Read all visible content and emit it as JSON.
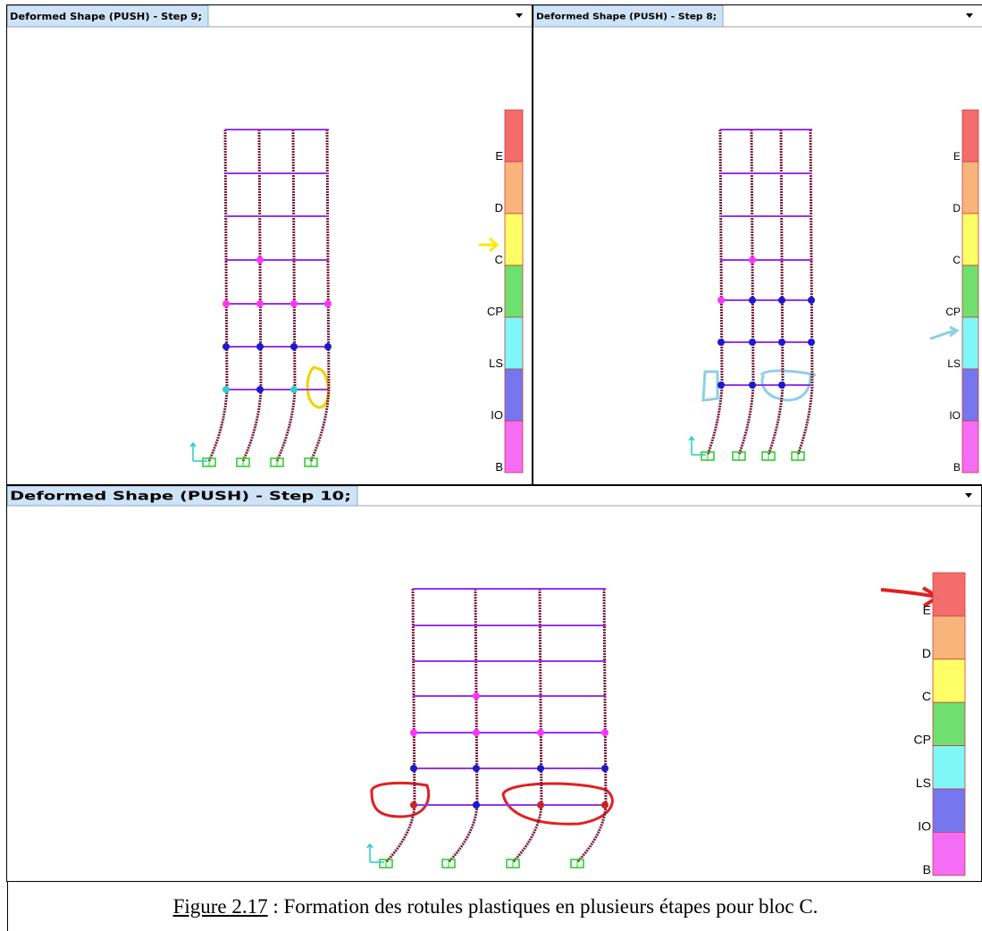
{
  "panels": [
    {
      "title": "Deformed Shape (PUSH) - Step 9;",
      "legend": [
        "E",
        "D",
        "C",
        "CP",
        "LS",
        "IO",
        "B"
      ]
    },
    {
      "title": "Deformed Shape (PUSH) - Step 8;",
      "legend": [
        "E",
        "D",
        "C",
        "CP",
        "LS",
        "IO",
        "B"
      ]
    },
    {
      "title": "Deformed Shape (PUSH) - Step 10;",
      "legend": [
        "E",
        "D",
        "C",
        "CP",
        "LS",
        "IO",
        "B"
      ]
    }
  ],
  "caption": {
    "figure": "Figure 2.17",
    "text": " : Formation des rotules plastiques en plusieurs étapes pour  bloc C."
  }
}
